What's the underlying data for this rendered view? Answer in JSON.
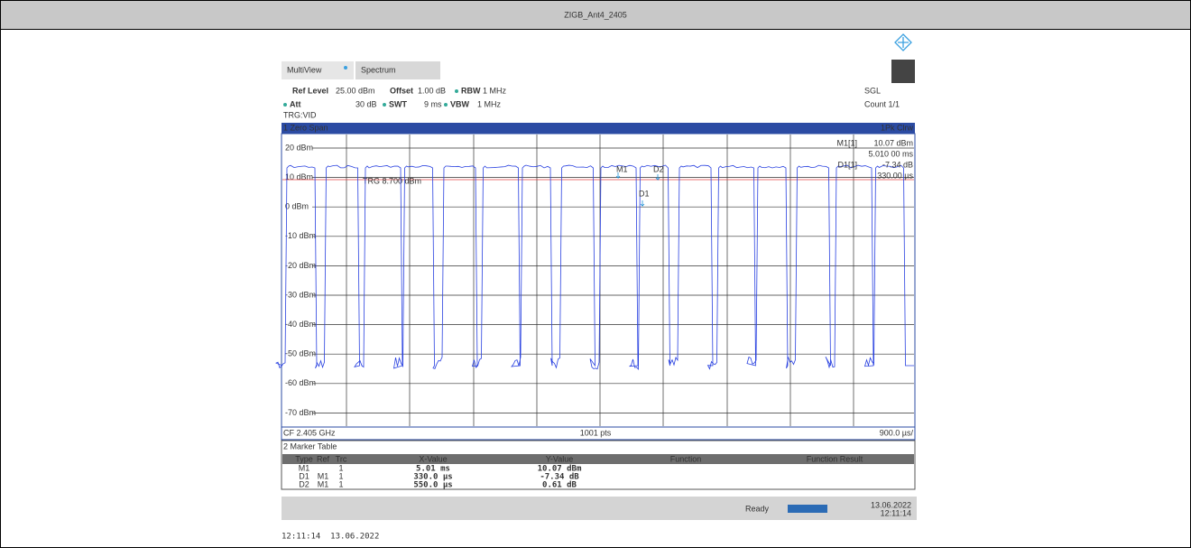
{
  "title": "ZIGB_Ant4_2405",
  "tabs": [
    "MultiView",
    "Spectrum"
  ],
  "settings": {
    "ref_level_label": "Ref Level",
    "ref_level": "25.00 dBm",
    "offset_label": "Offset",
    "offset": "1.00 dB",
    "rbw_label": "RBW",
    "rbw": "1 MHz",
    "att_label": "Att",
    "att": "30 dB",
    "swt_label": "SWT",
    "swt": "9 ms",
    "vbw_label": "VBW",
    "vbw": "1 MHz",
    "trg": "TRG:VID",
    "mode": "SGL",
    "count": "Count 1/1"
  },
  "window": {
    "title": "1 Zero Span",
    "trace": "1Pk Clrw",
    "y_labels": [
      "20 dBm",
      "10 dBm",
      "0 dBm",
      "-10 dBm",
      "-20 dBm",
      "-30 dBm",
      "-40 dBm",
      "-50 dBm",
      "-60 dBm",
      "-70 dBm"
    ],
    "trigger_label": "TRG 8.700 dBm",
    "markers": [
      "M1",
      "D2",
      "D1"
    ],
    "marker_info": [
      {
        "label": "M1[1]",
        "value": "10.07 dBm"
      },
      {
        "value": "5.010 00 ms"
      },
      {
        "label": "D1[1]",
        "value": "-7.34 dB"
      },
      {
        "value": "330.00 µs"
      }
    ]
  },
  "footer_bar": {
    "cf": "CF 2.405 GHz",
    "pts": "1001 pts",
    "span": "900.0 µs/"
  },
  "marker_table": {
    "title": "2 Marker Table",
    "columns": [
      "Type",
      "Ref",
      "Trc",
      "X-Value",
      "Y-Value",
      "Function",
      "Function Result"
    ],
    "rows": [
      {
        "type": "M1",
        "trc": "1",
        "x": "5.01 ms",
        "y": "10.07 dBm"
      },
      {
        "type": "D1",
        "ref": "M1",
        "trc": "1",
        "x": "330.0 µs",
        "y": "-7.34 dB"
      },
      {
        "type": "D2",
        "ref": "M1",
        "trc": "1",
        "x": "550.0 µs",
        "y": "0.61 dB"
      }
    ]
  },
  "status": {
    "state": "Ready",
    "date": "13.06.2022",
    "time": "12:11:14"
  },
  "timestamp": "12:11:14  13.06.2022"
}
